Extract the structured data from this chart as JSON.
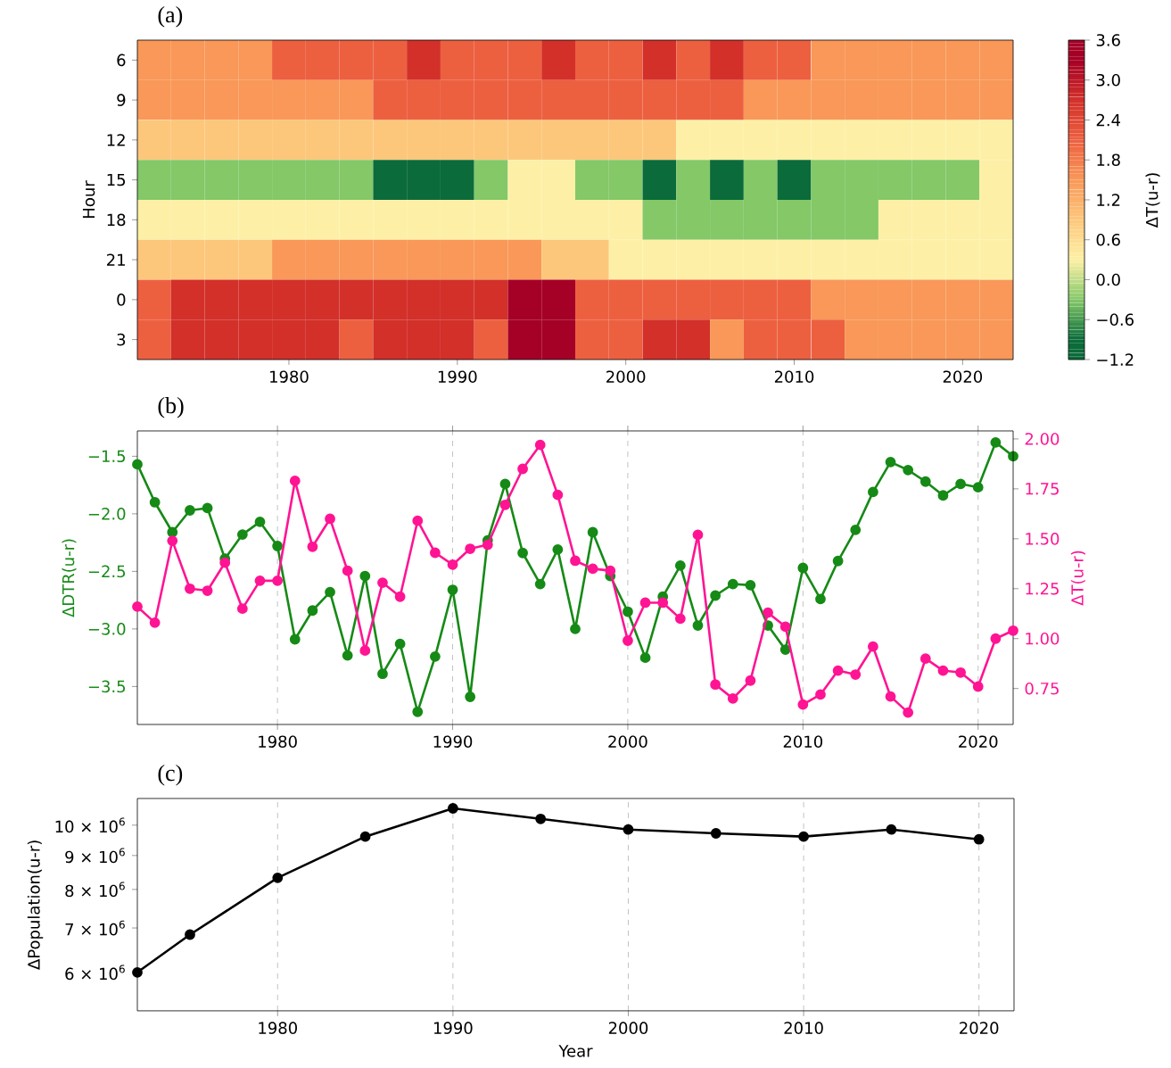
{
  "chart_data": [
    {
      "type": "heatmap",
      "title": "(a)",
      "ylabel": "Hour",
      "clabel": "ΔT(u-r)",
      "categories": [
        null,
        null,
        null,
        null,
        "1980",
        null,
        null,
        null,
        null,
        "1990",
        null,
        null,
        null,
        null,
        "2000",
        null,
        null,
        null,
        null,
        "2010",
        null,
        null,
        null,
        null,
        "2020",
        null
      ],
      "y_categories": [
        "6",
        "9",
        "12",
        "15",
        "18",
        "21",
        "0",
        "3"
      ],
      "cells": [
        [
          1.5,
          1.5,
          1.5,
          1.5,
          2.1,
          2.1,
          2.1,
          2.1,
          2.7,
          2.1,
          2.1,
          2.1,
          2.7,
          2.1,
          2.1,
          2.7,
          2.1,
          2.7,
          2.1,
          2.1,
          1.5,
          1.5,
          1.5,
          1.5,
          1.5,
          1.5
        ],
        [
          1.5,
          1.5,
          1.5,
          1.5,
          1.5,
          1.5,
          1.5,
          2.1,
          2.1,
          2.1,
          2.1,
          2.1,
          2.1,
          2.1,
          2.1,
          2.1,
          2.1,
          2.1,
          1.5,
          1.5,
          1.5,
          1.5,
          1.5,
          1.5,
          1.5,
          1.5
        ],
        [
          0.9,
          0.9,
          0.9,
          0.9,
          0.9,
          0.9,
          0.9,
          0.9,
          0.9,
          0.9,
          0.9,
          0.9,
          0.9,
          0.9,
          0.9,
          0.9,
          0.3,
          0.3,
          0.3,
          0.3,
          0.3,
          0.3,
          0.3,
          0.3,
          0.3,
          0.3
        ],
        [
          -0.3,
          -0.3,
          -0.3,
          -0.3,
          -0.3,
          -0.3,
          -0.3,
          -0.9,
          -0.9,
          -0.9,
          -0.3,
          0.3,
          0.3,
          -0.3,
          -0.3,
          -0.9,
          -0.3,
          -0.9,
          -0.3,
          -0.9,
          -0.3,
          -0.3,
          -0.3,
          -0.3,
          -0.3,
          0.3
        ],
        [
          0.3,
          0.3,
          0.3,
          0.3,
          0.3,
          0.3,
          0.3,
          0.3,
          0.3,
          0.3,
          0.3,
          0.3,
          0.3,
          0.3,
          0.3,
          -0.3,
          -0.3,
          -0.3,
          -0.3,
          -0.3,
          -0.3,
          -0.3,
          0.3,
          0.3,
          0.3,
          0.3
        ],
        [
          0.9,
          0.9,
          0.9,
          0.9,
          1.5,
          1.5,
          1.5,
          1.5,
          1.5,
          1.5,
          1.5,
          1.5,
          0.9,
          0.9,
          0.3,
          0.3,
          0.3,
          0.3,
          0.3,
          0.3,
          0.3,
          0.3,
          0.3,
          0.3,
          0.3,
          0.3
        ],
        [
          2.1,
          2.7,
          2.7,
          2.7,
          2.7,
          2.7,
          2.7,
          2.7,
          2.7,
          2.7,
          2.7,
          3.3,
          3.3,
          2.1,
          2.1,
          2.1,
          2.1,
          2.1,
          2.1,
          2.1,
          1.5,
          1.5,
          1.5,
          1.5,
          1.5,
          1.5
        ],
        [
          2.1,
          2.7,
          2.7,
          2.7,
          2.7,
          2.7,
          2.1,
          2.7,
          2.7,
          2.7,
          2.1,
          3.3,
          3.3,
          2.1,
          2.1,
          2.7,
          2.7,
          1.5,
          2.1,
          2.1,
          2.1,
          1.5,
          1.5,
          1.5,
          1.5,
          1.5
        ]
      ],
      "clim": [
        -1.2,
        3.6
      ],
      "cticks": [
        {
          "value": -1.2,
          "label": "−1.2"
        },
        {
          "value": -0.6,
          "label": "−0.6"
        },
        {
          "value": 0,
          "label": "0.0"
        },
        {
          "value": 0.6,
          "label": "0.6"
        },
        {
          "value": 1.2,
          "label": "1.2"
        },
        {
          "value": 1.8,
          "label": "1.8"
        },
        {
          "value": 2.4,
          "label": "2.4"
        },
        {
          "value": 3.0,
          "label": "3.0"
        },
        {
          "value": 3.6,
          "label": "3.6"
        }
      ]
    },
    {
      "type": "line",
      "title": "(b)",
      "ylabel": "ΔDTR(u-r)",
      "y2label": "ΔT(u-r)",
      "x": [
        1972,
        1973,
        1974,
        1975,
        1976,
        1977,
        1978,
        1979,
        1980,
        1981,
        1982,
        1983,
        1984,
        1985,
        1986,
        1987,
        1988,
        1989,
        1990,
        1991,
        1992,
        1993,
        1994,
        1995,
        1996,
        1997,
        1998,
        1999,
        2000,
        2001,
        2002,
        2003,
        2004,
        2005,
        2006,
        2007,
        2008,
        2009,
        2010,
        2011,
        2012,
        2013,
        2014,
        2015,
        2016,
        2017,
        2018,
        2019,
        2020,
        2021,
        2022
      ],
      "xlim": [
        1972,
        2022
      ],
      "xticks": [
        1980,
        1990,
        2000,
        2010,
        2020
      ],
      "ylim": [
        -3.83,
        -1.28
      ],
      "yticks": [
        {
          "value": -3.5,
          "label": "−3.5"
        },
        {
          "value": -3.0,
          "label": "−3.0"
        },
        {
          "value": -2.5,
          "label": "−2.5"
        },
        {
          "value": -2.0,
          "label": "−2.0"
        },
        {
          "value": -1.5,
          "label": "−1.5"
        }
      ],
      "y2lim": [
        0.57,
        2.04
      ],
      "y2ticks": [
        {
          "value": 0.75,
          "label": "0.75"
        },
        {
          "value": 1.0,
          "label": "1.00"
        },
        {
          "value": 1.25,
          "label": "1.25"
        },
        {
          "value": 1.5,
          "label": "1.50"
        },
        {
          "value": 1.75,
          "label": "1.75"
        },
        {
          "value": 2.0,
          "label": "2.00"
        }
      ],
      "grid": "x",
      "marker": "circle",
      "series": [
        {
          "color": "#168a16",
          "values": [
            -1.57,
            -1.9,
            -2.16,
            -1.97,
            -1.95,
            -2.39,
            -2.18,
            -2.07,
            -2.28,
            -3.09,
            -2.84,
            -2.68,
            -3.23,
            -2.54,
            -3.39,
            -3.13,
            -3.72,
            -3.24,
            -2.66,
            -3.59,
            -2.23,
            -1.74,
            -2.34,
            -2.61,
            -2.31,
            -3.0,
            -2.16,
            -2.54,
            -2.85,
            -3.25,
            -2.72,
            -2.45,
            -2.97,
            -2.71,
            -2.61,
            -2.62,
            -2.97,
            -3.18,
            -2.47,
            -2.74,
            -2.41,
            -2.14,
            -1.81,
            -1.55,
            -1.62,
            -1.72,
            -1.84,
            -1.74,
            -1.77,
            -1.38,
            -1.5
          ]
        },
        {
          "color": "#ff1493",
          "axis": "y2",
          "values": [
            1.16,
            1.08,
            1.49,
            1.25,
            1.24,
            1.38,
            1.15,
            1.29,
            1.29,
            1.79,
            1.46,
            1.6,
            1.34,
            0.94,
            1.28,
            1.21,
            1.59,
            1.43,
            1.37,
            1.45,
            1.47,
            1.67,
            1.85,
            1.97,
            1.72,
            1.39,
            1.35,
            1.34,
            0.99,
            1.18,
            1.18,
            1.1,
            1.52,
            0.77,
            0.7,
            0.79,
            1.13,
            1.06,
            0.67,
            0.72,
            0.84,
            0.82,
            0.96,
            0.71,
            0.63,
            0.9,
            0.84,
            0.83,
            0.76,
            1.0,
            1.04
          ]
        }
      ]
    },
    {
      "type": "line",
      "title": "(c)",
      "xlabel": "Year",
      "ylabel": "ΔPopulation(u-r)",
      "x": [
        1972,
        1975,
        1980,
        1985,
        1990,
        1995,
        2000,
        2005,
        2010,
        2015,
        2020
      ],
      "values": [
        6000000,
        6840000,
        8330000,
        9610000,
        10600000,
        10220000,
        9850000,
        9720000,
        9610000,
        9850000,
        9520000
      ],
      "color": "#000000",
      "log": "y",
      "xlim": [
        1972,
        2022
      ],
      "xticks": [
        1980,
        1990,
        2000,
        2010,
        2020
      ],
      "ylim": [
        5250000,
        10970000
      ],
      "yticks": [
        {
          "value": 6000000,
          "label": "6 × 10$^{6}$"
        },
        {
          "value": 7000000,
          "label": "7 × 10$^{6}$"
        },
        {
          "value": 8000000,
          "label": "8 × 10$^{6}$"
        },
        {
          "value": 9000000,
          "label": "9 × 10$^{6}$"
        },
        {
          "value": 10000000,
          "label": "10 × 10$^{6}$"
        }
      ],
      "grid": "x",
      "marker": "circle"
    }
  ]
}
